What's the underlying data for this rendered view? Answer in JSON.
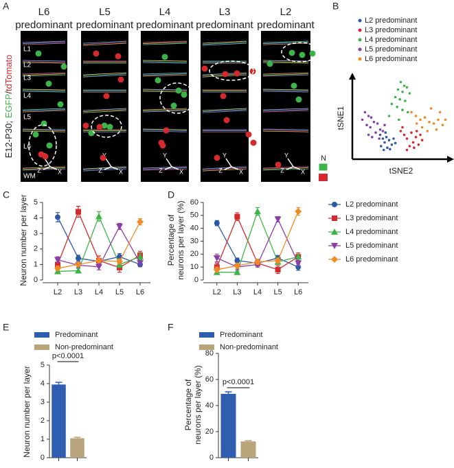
{
  "panel_a": {
    "letter": "A",
    "headers": [
      [
        "L6",
        "predominant"
      ],
      [
        "L5",
        "predominant"
      ],
      [
        "L4",
        "predominant"
      ],
      [
        "L3",
        "predominant"
      ],
      [
        "L2",
        "predominant"
      ]
    ],
    "layers": [
      "L1",
      "L2",
      "L3",
      "L4",
      "L5",
      "L6",
      "WM"
    ],
    "side_label": [
      "E12-P30;",
      "EGFP",
      "/",
      "tdTomato"
    ],
    "axis_letters": [
      "Y",
      "Z",
      "X"
    ],
    "legend_label": "N"
  },
  "chart_data": [
    {
      "type": "scatter",
      "panel": "B",
      "xlabel": "tSNE2",
      "ylabel": "tSNE1",
      "xlim": [
        0,
        100
      ],
      "ylim": [
        0,
        100
      ],
      "series": [
        {
          "name": "L2 predominant",
          "color": "#2c58a6",
          "x": [
            25,
            28,
            32,
            30,
            35,
            38,
            26,
            33,
            40,
            29,
            36,
            42,
            31
          ],
          "y": [
            25,
            20,
            22,
            15,
            18,
            12,
            10,
            8,
            20,
            5,
            6,
            14,
            28
          ]
        },
        {
          "name": "L3 predominant",
          "color": "#d42a2e",
          "x": [
            48,
            52,
            55,
            60,
            62,
            58,
            65,
            68,
            70,
            55,
            63,
            72,
            50,
            66
          ],
          "y": [
            30,
            25,
            20,
            28,
            15,
            10,
            22,
            12,
            25,
            5,
            8,
            18,
            35,
            30
          ]
        },
        {
          "name": "L4 predominant",
          "color": "#3db449",
          "x": [
            48,
            52,
            55,
            45,
            50,
            58,
            42,
            47,
            53,
            38,
            44,
            50,
            56,
            35,
            46
          ],
          "y": [
            95,
            90,
            88,
            85,
            82,
            80,
            75,
            72,
            70,
            66,
            62,
            58,
            55,
            50,
            45
          ]
        },
        {
          "name": "L5 predominant",
          "color": "#8b3fa6",
          "x": [
            8,
            12,
            5,
            15,
            18,
            10,
            22,
            14,
            25,
            20,
            28,
            16,
            12,
            24,
            30
          ],
          "y": [
            55,
            50,
            45,
            48,
            42,
            38,
            40,
            35,
            32,
            28,
            30,
            22,
            25,
            20,
            38
          ]
        },
        {
          "name": "L6 predominant",
          "color": "#f08a24",
          "x": [
            60,
            65,
            70,
            75,
            80,
            85,
            90,
            95,
            72,
            78,
            88,
            66,
            82,
            92,
            98
          ],
          "y": [
            55,
            50,
            45,
            48,
            42,
            40,
            45,
            38,
            35,
            30,
            32,
            40,
            60,
            55,
            45
          ]
        }
      ]
    },
    {
      "type": "line",
      "panel": "C",
      "ylabel": [
        "Neuron number per layer"
      ],
      "categories": [
        "L2",
        "L3",
        "L4",
        "L5",
        "L6"
      ],
      "ylim": [
        0,
        5
      ],
      "yticks": [
        0,
        1,
        2,
        3,
        4,
        5
      ],
      "series": [
        {
          "name": "L2 predominant",
          "color": "#2c58a6",
          "marker": "circle",
          "values": [
            4.05,
            1.4,
            1.2,
            1.5,
            1.0
          ],
          "errors": [
            0.3,
            0.2,
            0.2,
            0.2,
            0.15
          ]
        },
        {
          "name": "L3 predominant",
          "color": "#d42a2e",
          "marker": "square",
          "values": [
            1.0,
            4.4,
            1.25,
            0.8,
            1.6
          ],
          "errors": [
            0.3,
            0.35,
            0.3,
            0.3,
            0.25
          ]
        },
        {
          "name": "L4 predominant",
          "color": "#3db449",
          "marker": "triangle-up",
          "values": [
            0.55,
            0.6,
            4.1,
            1.0,
            1.5
          ],
          "errors": [
            0.1,
            0.15,
            0.3,
            0.2,
            0.2
          ]
        },
        {
          "name": "L5 predominant",
          "color": "#8b3fa6",
          "marker": "triangle-down",
          "values": [
            1.3,
            0.95,
            0.85,
            3.45,
            1.1
          ],
          "errors": [
            0.2,
            0.15,
            0.2,
            0.2,
            0.15
          ]
        },
        {
          "name": "L6 predominant",
          "color": "#f08a24",
          "marker": "diamond",
          "values": [
            0.75,
            1.0,
            1.25,
            1.2,
            3.75
          ],
          "errors": [
            0.15,
            0.15,
            0.15,
            0.15,
            0.2
          ]
        }
      ]
    },
    {
      "type": "line",
      "panel": "D",
      "ylabel": [
        "Percentage of",
        "neurons per layer (%)"
      ],
      "categories": [
        "L2",
        "L3",
        "L4",
        "L5",
        "L6"
      ],
      "ylim": [
        0,
        60
      ],
      "yticks": [
        0,
        10,
        20,
        30,
        40,
        50,
        60
      ],
      "legend": "right",
      "series": [
        {
          "name": "L2 predominant",
          "color": "#2c58a6",
          "marker": "circle",
          "values": [
            44,
            15,
            13,
            17,
            10
          ],
          "errors": [
            2,
            2,
            2,
            2,
            2.5
          ]
        },
        {
          "name": "L3 predominant",
          "color": "#d42a2e",
          "marker": "square",
          "values": [
            10,
            49,
            13,
            8,
            18
          ],
          "errors": [
            3,
            3,
            3,
            3,
            3
          ]
        },
        {
          "name": "L4 predominant",
          "color": "#3db449",
          "marker": "triangle-up",
          "values": [
            6,
            6,
            53,
            14,
            18
          ],
          "errors": [
            1,
            1,
            3,
            2,
            2
          ]
        },
        {
          "name": "L5 predominant",
          "color": "#8b3fa6",
          "marker": "triangle-down",
          "values": [
            17,
            10,
            12,
            47,
            13
          ],
          "errors": [
            3,
            2,
            2,
            2,
            2
          ]
        },
        {
          "name": "L6 predominant",
          "color": "#f08a24",
          "marker": "diamond",
          "values": [
            8,
            11,
            14,
            15,
            53
          ],
          "errors": [
            2,
            2,
            2,
            2,
            3
          ]
        }
      ]
    },
    {
      "type": "bar",
      "panel": "E",
      "ylabel": [
        "Neuron number per layer"
      ],
      "categories": [
        "Predominant",
        "Non-predominant"
      ],
      "colors": [
        "#2f5eb0",
        "#b8a57c"
      ],
      "values": [
        3.95,
        1.05
      ],
      "errors": [
        0.12,
        0.05
      ],
      "ylim": [
        0,
        5
      ],
      "yticks": [
        0,
        1,
        2,
        3,
        4,
        5
      ],
      "annotation": "p<0.0001"
    },
    {
      "type": "bar",
      "panel": "F",
      "ylabel": [
        "Percentage of",
        "neurons per layer (%)"
      ],
      "categories": [
        "Predominant",
        "Non-predominant"
      ],
      "colors": [
        "#2f5eb0",
        "#b8a57c"
      ],
      "values": [
        49,
        12.5
      ],
      "errors": [
        1.5,
        0.5
      ],
      "ylim": [
        0,
        80
      ],
      "yticks": [
        0,
        20,
        40,
        60,
        80
      ],
      "annotation": "p<0.0001"
    }
  ]
}
